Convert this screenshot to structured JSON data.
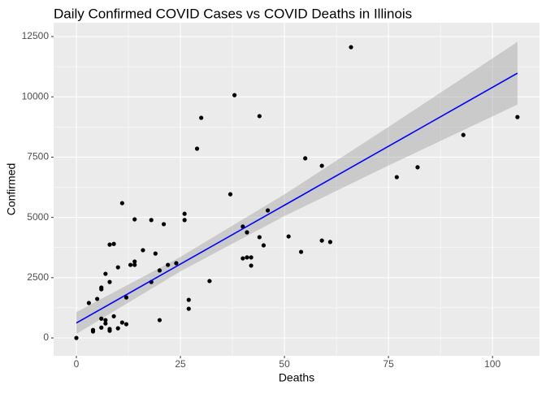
{
  "chart_data": {
    "type": "scatter",
    "title": "Daily Confirmed COVID Cases vs COVID Deaths in Illinois",
    "xlabel": "Deaths",
    "ylabel": "Confirmed",
    "x": [
      0,
      3,
      4,
      4,
      5,
      6,
      6,
      6,
      6,
      7,
      7,
      7,
      8,
      8,
      9,
      9,
      8,
      8,
      10,
      10,
      11,
      11,
      12,
      12,
      13,
      14,
      14,
      14,
      16,
      18,
      18,
      19,
      20,
      20,
      21,
      22,
      24,
      26,
      26,
      27,
      27,
      30,
      29,
      32,
      37,
      38,
      40,
      40,
      41,
      41,
      42,
      42,
      44,
      44,
      45,
      46,
      51,
      54,
      55,
      59,
      59,
      61,
      66,
      77,
      82,
      93,
      106
    ],
    "y": [
      0,
      1450,
      270,
      330,
      1620,
      2020,
      2090,
      800,
      430,
      2660,
      740,
      600,
      2320,
      3870,
      3900,
      900,
      370,
      300,
      2930,
      400,
      5590,
      640,
      1680,
      570,
      3030,
      3170,
      3030,
      4920,
      3640,
      4890,
      2320,
      3500,
      2800,
      740,
      4720,
      3030,
      3100,
      5150,
      4890,
      1580,
      1210,
      9130,
      7850,
      2360,
      5960,
      10070,
      4620,
      3300,
      4380,
      3340,
      3340,
      3000,
      9200,
      4180,
      3840,
      5290,
      4210,
      3570,
      7450,
      7140,
      4040,
      3980,
      12060,
      6670,
      7080,
      8420,
      9160
    ],
    "color": "#000000",
    "smooth": {
      "x": [
        0,
        25,
        50,
        75,
        106
      ],
      "y": [
        620,
        3063,
        5505,
        7950,
        10980
      ],
      "ymin": [
        170,
        2763,
        5055,
        7150,
        9680
      ],
      "ymax": [
        1070,
        3363,
        5955,
        8750,
        12280
      ],
      "color": "#0000ff",
      "fill": "#999999"
    },
    "xlim": [
      -5.47,
      111.3
    ],
    "ylim": [
      -741,
      13073
    ],
    "xticks": [
      0,
      25,
      50,
      75,
      100
    ],
    "yticks": [
      0,
      2500,
      5000,
      7500,
      10000,
      12500
    ],
    "grid": true
  }
}
